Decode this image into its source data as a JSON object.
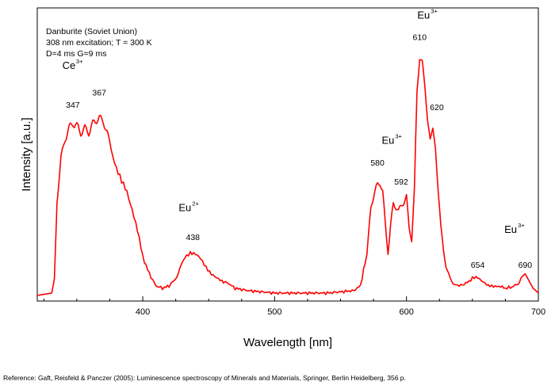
{
  "chart_data": {
    "type": "line",
    "xlabel": "Wavelength [nm]",
    "ylabel": "Intensity [a.u.]",
    "xlim": [
      320,
      700
    ],
    "ylim": [
      0,
      1
    ],
    "x_ticks": [
      400,
      500,
      600,
      700
    ],
    "grid": false,
    "legend": "none",
    "line_color": "#ff0000",
    "notes": [
      "Danburite (Soviet Union)",
      "308 nm excitation; T = 300 K",
      "D=4 ms G=9 ms"
    ],
    "series": [
      {
        "values_x": [
          320,
          331,
          333,
          335,
          338,
          341,
          344,
          347,
          350,
          353,
          356,
          359,
          362,
          365,
          367,
          370,
          373,
          376,
          380,
          384,
          388,
          392,
          396,
          400,
          405,
          410,
          415,
          420,
          425,
          428,
          432,
          436,
          440,
          444,
          448,
          452,
          456,
          460,
          465,
          470,
          480,
          490,
          500,
          510,
          520,
          530,
          540,
          550,
          560,
          565,
          570,
          573,
          576,
          578,
          580,
          582,
          584,
          586,
          588,
          590,
          592,
          594,
          596,
          598,
          600,
          602,
          604,
          606,
          608,
          610,
          612,
          614,
          616,
          618,
          620,
          622,
          624,
          626,
          628,
          630,
          633,
          636,
          640,
          645,
          650,
          654,
          658,
          662,
          666,
          670,
          675,
          680,
          685,
          688,
          690,
          693,
          696,
          700
        ],
        "values_y": [
          0.01,
          0.02,
          0.08,
          0.4,
          0.58,
          0.66,
          0.7,
          0.73,
          0.71,
          0.69,
          0.7,
          0.69,
          0.72,
          0.74,
          0.75,
          0.73,
          0.69,
          0.62,
          0.54,
          0.48,
          0.44,
          0.37,
          0.28,
          0.17,
          0.1,
          0.05,
          0.04,
          0.05,
          0.08,
          0.12,
          0.17,
          0.19,
          0.18,
          0.16,
          0.13,
          0.1,
          0.08,
          0.07,
          0.06,
          0.04,
          0.03,
          0.025,
          0.02,
          0.02,
          0.02,
          0.02,
          0.02,
          0.025,
          0.03,
          0.05,
          0.18,
          0.38,
          0.44,
          0.47,
          0.48,
          0.44,
          0.3,
          0.19,
          0.3,
          0.39,
          0.38,
          0.36,
          0.38,
          0.4,
          0.42,
          0.29,
          0.24,
          0.45,
          0.86,
          1.0,
          0.98,
          0.87,
          0.74,
          0.66,
          0.7,
          0.62,
          0.45,
          0.3,
          0.2,
          0.13,
          0.08,
          0.06,
          0.05,
          0.06,
          0.08,
          0.085,
          0.07,
          0.05,
          0.045,
          0.05,
          0.04,
          0.045,
          0.06,
          0.09,
          0.1,
          0.07,
          0.04,
          0.02
        ]
      }
    ],
    "peak_labels": [
      {
        "text": "347",
        "x": 347,
        "y": 0.79
      },
      {
        "text": "367",
        "x": 367,
        "y": 0.84
      },
      {
        "text": "438",
        "x": 438,
        "y": 0.24
      },
      {
        "text": "580",
        "x": 578,
        "y": 0.55
      },
      {
        "text": "592",
        "x": 596,
        "y": 0.47
      },
      {
        "text": "610",
        "x": 610,
        "y": 1.07
      },
      {
        "text": "620",
        "x": 623,
        "y": 0.78
      },
      {
        "text": "654",
        "x": 654,
        "y": 0.125
      },
      {
        "text": "690",
        "x": 690,
        "y": 0.125
      }
    ],
    "ion_labels": [
      {
        "base": "Ce",
        "sup": "3+",
        "x": 344,
        "y": 0.95
      },
      {
        "base": "Eu",
        "sup": "2+",
        "x": 432,
        "y": 0.36
      },
      {
        "base": "Eu",
        "sup": "3+",
        "x": 586,
        "y": 0.64
      },
      {
        "base": "Eu",
        "sup": "3+",
        "x": 613,
        "y": 1.16
      },
      {
        "base": "Eu",
        "sup": "3+",
        "x": 679,
        "y": 0.27
      }
    ]
  },
  "reference": "Reference: Gaft, Reisfeld & Panczer (2005): Luminescence spectroscopy of Minerals and Materials, Springer, Berlin Heidelberg, 356 p."
}
